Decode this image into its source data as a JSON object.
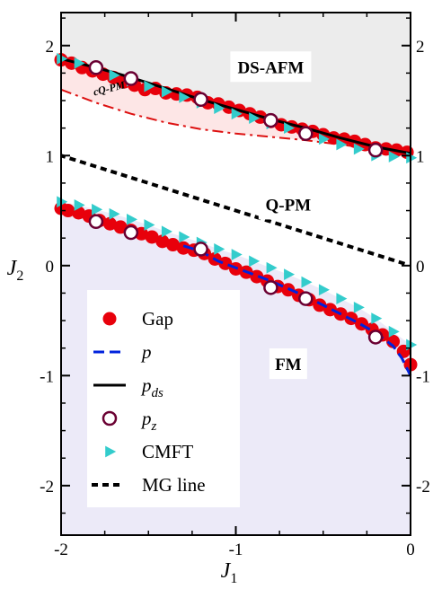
{
  "chart_data": {
    "type": "scatter",
    "xlabel": "J",
    "xlabel_sub": "1",
    "ylabel": "J",
    "ylabel_sub": "2",
    "xlim": [
      -2,
      0
    ],
    "ylim": [
      -2.45,
      2.3
    ],
    "xticks": [
      -2,
      -1,
      0
    ],
    "yticks": [
      -2,
      -1,
      0,
      1,
      2
    ],
    "xtick_labels": [
      "-2",
      "-1",
      "0"
    ],
    "ytick_labels": [
      "-2",
      "-1",
      "0",
      "1",
      "2"
    ],
    "phase_labels": [
      {
        "text": "DS-AFM",
        "x": -0.8,
        "y": 1.8
      },
      {
        "text": "Q-PM",
        "x": -0.7,
        "y": 0.55
      },
      {
        "text": "FM",
        "x": -0.7,
        "y": -0.9
      }
    ],
    "cqpm_label": {
      "text": "cQ-PM",
      "x": -1.72,
      "y": 1.58
    },
    "legend": {
      "position": "bottom-left",
      "entries": [
        {
          "key": "gap",
          "label": "Gap"
        },
        {
          "key": "p",
          "label": "p"
        },
        {
          "key": "pds",
          "label": "p",
          "sub": "ds"
        },
        {
          "key": "pz",
          "label": "p",
          "sub": "z"
        },
        {
          "key": "cmft",
          "label": "CMFT"
        },
        {
          "key": "mg",
          "label": "MG line"
        }
      ]
    },
    "colors": {
      "gap": "#e8000b",
      "p": "#0022dd",
      "pds": "#000000",
      "pz": "#6a0032",
      "cmft": "#33cccc",
      "mg": "#000000",
      "dashdot": "#dd1111",
      "region_top": "#ececec",
      "region_fm": "#eceaf8",
      "region_cqpm": "#fde6e6"
    },
    "series": [
      {
        "name": "Gap",
        "x": [
          -2.0,
          -1.94,
          -1.88,
          -1.82,
          -1.76,
          -1.7,
          -1.64,
          -1.58,
          -1.52,
          -1.46,
          -1.4,
          -1.34,
          -1.28,
          -1.22,
          -1.16,
          -1.1,
          -1.04,
          -0.98,
          -0.92,
          -0.86,
          -0.8,
          -0.74,
          -0.68,
          -0.62,
          -0.56,
          -0.5,
          -0.44,
          -0.38,
          -0.32,
          -0.26,
          -0.2,
          -0.14,
          -0.08,
          -0.02
        ],
        "y": [
          1.87,
          1.84,
          1.8,
          1.77,
          1.74,
          1.71,
          1.67,
          1.64,
          1.6,
          1.61,
          1.57,
          1.56,
          1.55,
          1.53,
          1.48,
          1.47,
          1.44,
          1.41,
          1.38,
          1.35,
          1.31,
          1.28,
          1.26,
          1.24,
          1.22,
          1.19,
          1.16,
          1.15,
          1.13,
          1.1,
          1.07,
          1.06,
          1.05,
          1.03
        ]
      },
      {
        "name": "Gap",
        "x": [
          -2.0,
          -1.96,
          -1.9,
          -1.84,
          -1.78,
          -1.72,
          -1.66,
          -1.6,
          -1.54,
          -1.48,
          -1.42,
          -1.36,
          -1.3,
          -1.24,
          -1.18,
          -1.12,
          -1.06,
          -1.0,
          -0.94,
          -0.88,
          -0.82,
          -0.76,
          -0.7,
          -0.64,
          -0.58,
          -0.52,
          -0.46,
          -0.4,
          -0.34,
          -0.28,
          -0.22,
          -0.16,
          -0.1,
          -0.04,
          0.0
        ],
        "y": [
          0.52,
          0.5,
          0.48,
          0.45,
          0.41,
          0.38,
          0.35,
          0.32,
          0.29,
          0.26,
          0.22,
          0.19,
          0.16,
          0.14,
          0.11,
          0.06,
          0.02,
          -0.03,
          -0.06,
          -0.1,
          -0.14,
          -0.19,
          -0.22,
          -0.27,
          -0.31,
          -0.36,
          -0.4,
          -0.44,
          -0.48,
          -0.53,
          -0.58,
          -0.63,
          -0.69,
          -0.78,
          -0.9
        ]
      },
      {
        "name": "p",
        "x": [
          -1.3,
          -1.2,
          -1.1,
          -1.0,
          -0.9,
          -0.8,
          -0.7,
          -0.6,
          -0.5,
          -0.4,
          -0.3,
          -0.2,
          -0.1,
          -0.05,
          0.0
        ],
        "y": [
          0.18,
          0.13,
          0.04,
          -0.02,
          -0.08,
          -0.14,
          -0.21,
          -0.28,
          -0.36,
          -0.44,
          -0.52,
          -0.61,
          -0.73,
          -0.84,
          -1.0
        ]
      },
      {
        "name": "pds",
        "x": [
          -2.0,
          -1.8,
          -1.6,
          -1.4,
          -1.2,
          -1.0,
          -0.8,
          -0.6,
          -0.4,
          -0.2,
          0.0
        ],
        "y": [
          1.88,
          1.8,
          1.71,
          1.61,
          1.51,
          1.42,
          1.33,
          1.25,
          1.16,
          1.08,
          1.02
        ]
      },
      {
        "name": "pz",
        "x": [
          -1.8,
          -1.6,
          -1.2,
          -0.8,
          -0.6,
          -0.2
        ],
        "y": [
          1.8,
          1.7,
          1.51,
          1.32,
          1.2,
          1.05
        ]
      },
      {
        "name": "pz",
        "x": [
          -1.8,
          -1.6,
          -1.2,
          -0.8,
          -0.6,
          -0.2
        ],
        "y": [
          0.4,
          0.3,
          0.15,
          -0.2,
          -0.3,
          -0.65
        ]
      },
      {
        "name": "CMFT",
        "x": [
          -2.0,
          -1.9,
          -1.8,
          -1.7,
          -1.6,
          -1.5,
          -1.4,
          -1.3,
          -1.2,
          -1.1,
          -1.0,
          -0.9,
          -0.8,
          -0.7,
          -0.6,
          -0.5,
          -0.4,
          -0.3,
          -0.2,
          -0.1,
          0.0
        ],
        "y": [
          1.88,
          1.84,
          1.79,
          1.73,
          1.68,
          1.63,
          1.58,
          1.53,
          1.48,
          1.43,
          1.38,
          1.34,
          1.29,
          1.25,
          1.2,
          1.15,
          1.1,
          1.06,
          1.0,
          0.99,
          0.98
        ]
      },
      {
        "name": "CMFT",
        "x": [
          -2.0,
          -1.9,
          -1.8,
          -1.7,
          -1.6,
          -1.5,
          -1.4,
          -1.3,
          -1.2,
          -1.1,
          -1.0,
          -0.9,
          -0.8,
          -0.7,
          -0.6,
          -0.5,
          -0.4,
          -0.3,
          -0.2,
          -0.1,
          0.0
        ],
        "y": [
          0.58,
          0.55,
          0.51,
          0.47,
          0.42,
          0.37,
          0.31,
          0.26,
          0.21,
          0.15,
          0.1,
          0.04,
          -0.02,
          -0.08,
          -0.15,
          -0.22,
          -0.3,
          -0.38,
          -0.48,
          -0.6,
          -0.72
        ]
      },
      {
        "name": "MG line",
        "x": [
          -2.0,
          0.0
        ],
        "y": [
          1.0,
          0.0
        ]
      },
      {
        "name": "",
        "x": [
          -2.0,
          -1.8,
          -1.6,
          -1.4,
          -1.2,
          -1.0,
          -0.8,
          -0.6,
          -0.4,
          -0.2,
          0.0
        ],
        "y": [
          1.6,
          1.48,
          1.38,
          1.3,
          1.24,
          1.2,
          1.17,
          1.14,
          1.1,
          1.06,
          1.02
        ]
      }
    ]
  }
}
